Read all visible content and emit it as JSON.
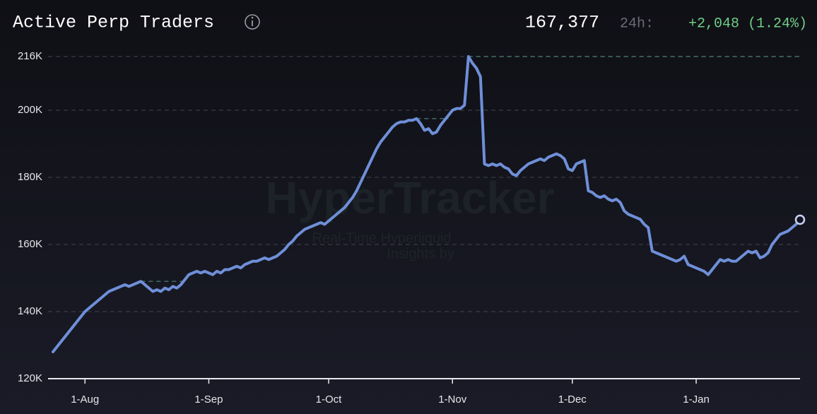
{
  "chart_data": {
    "type": "line",
    "title": "Active Perp Traders",
    "annotations": {
      "current": "167,377",
      "period": "24h:",
      "change": "+2,048 (1.24%)"
    },
    "watermark": {
      "brand": "HyperTracker",
      "line1": "Real-Time Hyperliquid",
      "line2": "Insights by"
    },
    "categories": [
      null,
      null,
      null,
      null,
      null,
      null,
      null,
      null,
      "1-Aug",
      null,
      null,
      null,
      null,
      null,
      null,
      null,
      null,
      null,
      null,
      null,
      null,
      null,
      null,
      null,
      null,
      null,
      null,
      null,
      null,
      null,
      null,
      null,
      null,
      null,
      null,
      null,
      null,
      null,
      null,
      "1-Sep",
      null,
      null,
      null,
      null,
      null,
      null,
      null,
      null,
      null,
      null,
      null,
      null,
      null,
      null,
      null,
      null,
      null,
      null,
      null,
      null,
      null,
      null,
      null,
      null,
      null,
      null,
      null,
      null,
      null,
      "1-Oct",
      null,
      null,
      null,
      null,
      null,
      null,
      null,
      null,
      null,
      null,
      null,
      null,
      null,
      null,
      null,
      null,
      null,
      null,
      null,
      null,
      null,
      null,
      null,
      null,
      null,
      null,
      null,
      null,
      null,
      null,
      "1-Nov",
      null,
      null,
      null,
      null,
      null,
      null,
      null,
      null,
      null,
      null,
      null,
      null,
      null,
      null,
      null,
      null,
      null,
      null,
      null,
      null,
      null,
      null,
      null,
      null,
      null,
      null,
      null,
      null,
      null,
      "1-Dec",
      null,
      null,
      null,
      null,
      null,
      null,
      null,
      null,
      null,
      null,
      null,
      null,
      null,
      null,
      null,
      null,
      null,
      null,
      null,
      null,
      null,
      null,
      null,
      null,
      null,
      null,
      null,
      null,
      null,
      null,
      "1-Jan",
      null,
      null,
      null,
      null,
      null,
      null,
      null,
      null,
      null,
      null,
      null,
      null,
      null,
      null,
      null,
      null,
      null,
      null,
      null,
      null,
      null,
      null,
      null,
      null,
      null,
      null
    ],
    "series": [
      {
        "name": "Active Perp Traders",
        "color": "#6f8fd8",
        "values": [
          128000,
          129500,
          131000,
          132500,
          134000,
          135500,
          137000,
          138500,
          140000,
          141000,
          142000,
          143000,
          144000,
          145000,
          146000,
          146500,
          147000,
          147500,
          148000,
          147500,
          148000,
          148500,
          149000,
          148000,
          147000,
          146000,
          146500,
          146000,
          147000,
          146500,
          147500,
          147000,
          148000,
          149500,
          151000,
          151500,
          152000,
          151500,
          152000,
          151500,
          151000,
          152000,
          151500,
          152500,
          152500,
          153000,
          153500,
          153000,
          154000,
          154500,
          155000,
          155000,
          155500,
          156000,
          155500,
          156000,
          156500,
          157500,
          158500,
          160000,
          161000,
          162500,
          163500,
          164500,
          165000,
          165500,
          166000,
          166500,
          166000,
          167000,
          168000,
          169000,
          170000,
          171000,
          172500,
          174000,
          176000,
          178500,
          181000,
          183500,
          186000,
          188500,
          190500,
          192000,
          193500,
          195000,
          196000,
          196500,
          196500,
          197000,
          197000,
          197500,
          196000,
          194000,
          194500,
          193000,
          193500,
          195500,
          197000,
          198500,
          200000,
          200500,
          200500,
          201500,
          216000,
          214000,
          212500,
          210000,
          184000,
          183500,
          184000,
          183500,
          184000,
          183000,
          182500,
          181000,
          180500,
          182000,
          183000,
          184000,
          184500,
          185000,
          185500,
          185000,
          186000,
          186500,
          187000,
          186500,
          185500,
          182500,
          182000,
          184000,
          184500,
          185000,
          176000,
          175500,
          174500,
          174000,
          174500,
          173500,
          173000,
          173500,
          172500,
          170000,
          169000,
          168500,
          168000,
          167500,
          166000,
          165000,
          158000,
          157500,
          157000,
          156500,
          156000,
          155500,
          155000,
          155500,
          156500,
          154000,
          153500,
          153000,
          152500,
          152000,
          151000,
          152500,
          154000,
          155500,
          155000,
          155500,
          155000,
          155000,
          156000,
          157000,
          158000,
          157500,
          158000,
          156000,
          156500,
          157500,
          160000,
          161500,
          163000,
          163500,
          164000,
          165000,
          166000,
          167377
        ]
      }
    ],
    "ylim": [
      120000,
      216000
    ],
    "yticks": [
      {
        "value": 120000,
        "label": "120K"
      },
      {
        "value": 140000,
        "label": "140K"
      },
      {
        "value": 160000,
        "label": "160K"
      },
      {
        "value": 180000,
        "label": "180K"
      },
      {
        "value": 200000,
        "label": "200K"
      },
      {
        "value": 216000,
        "label": "216K"
      }
    ],
    "grid": true,
    "high_marker_color": "#3f6f63"
  }
}
